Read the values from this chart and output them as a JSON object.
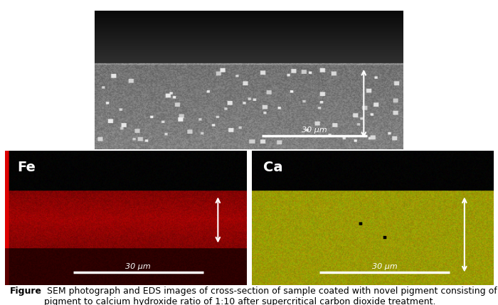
{
  "fig_width": 7.0,
  "fig_height": 4.29,
  "dpi": 100,
  "caption_bold": "Figure",
  "caption_text": " SEM photograph and EDS images of cross-section of sample coated with novel pigment consisting of\npigment to calcium hydroxide ratio of 1:10 after supercritical carbon dioxide treatment.",
  "label_fe": "Fe",
  "label_ca": "Ca",
  "scale_label": "30 μm",
  "caption_fontsize": 9.0
}
